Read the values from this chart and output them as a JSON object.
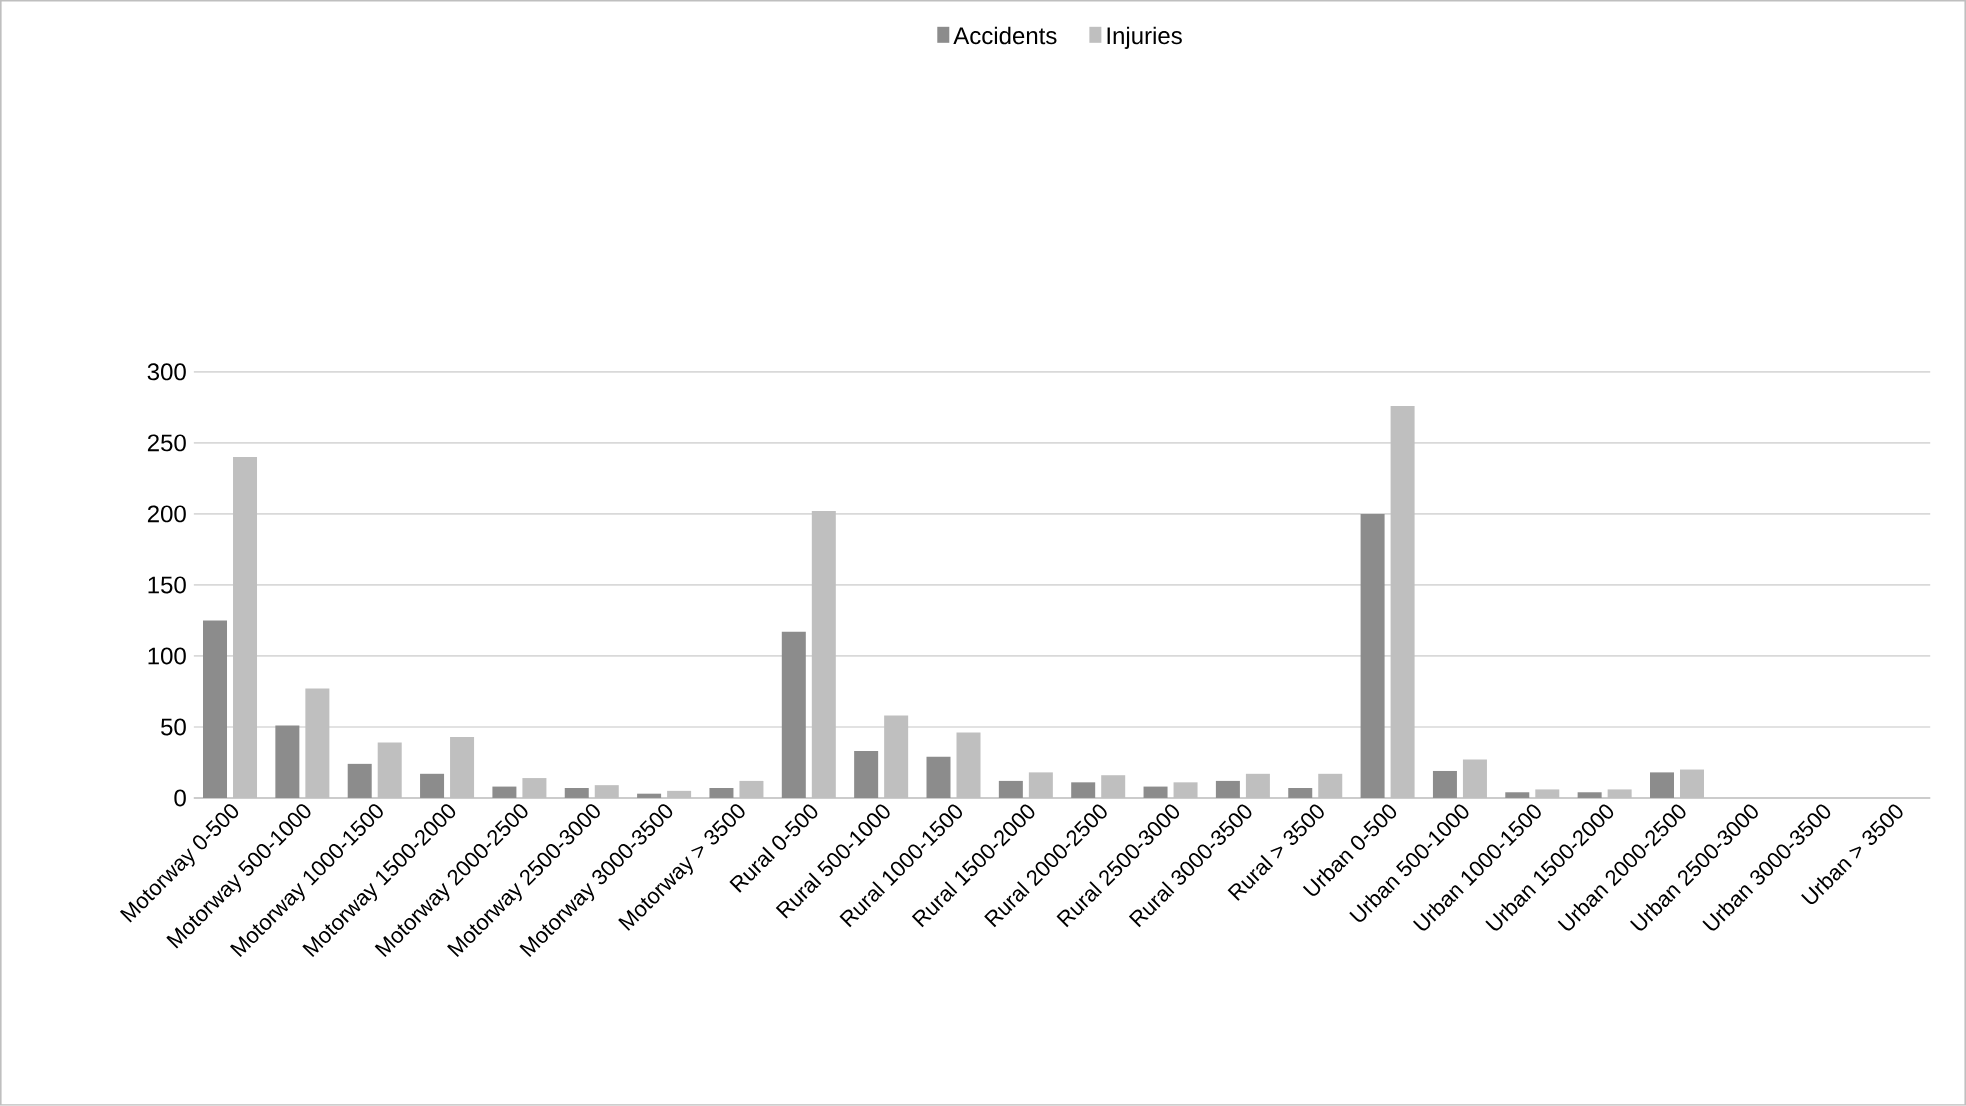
{
  "chart_data": {
    "type": "bar",
    "categories": [
      "Motorway 0-500",
      "Motorway 500-1000",
      "Motorway 1000-1500",
      "Motorway 1500-2000",
      "Motorway 2000-2500",
      "Motorway 2500-3000",
      "Motorway 3000-3500",
      "Motorway > 3500",
      "Rural 0-500",
      "Rural 500-1000",
      "Rural 1000-1500",
      "Rural 1500-2000",
      "Rural 2000-2500",
      "Rural 2500-3000",
      "Rural 3000-3500",
      "Rural > 3500",
      "Urban 0-500",
      "Urban 500-1000",
      "Urban 1000-1500",
      "Urban 1500-2000",
      "Urban 2000-2500",
      "Urban 2500-3000",
      "Urban 3000-3500",
      "Urban > 3500"
    ],
    "series": [
      {
        "name": "Accidents",
        "color": "#8c8c8c",
        "values": [
          125,
          51,
          24,
          17,
          8,
          7,
          3,
          7,
          117,
          33,
          29,
          12,
          11,
          8,
          12,
          7,
          200,
          19,
          4,
          4,
          18,
          0,
          0,
          0
        ]
      },
      {
        "name": "Injuries",
        "color": "#bfbfbf",
        "values": [
          240,
          77,
          39,
          43,
          14,
          9,
          5,
          12,
          202,
          58,
          46,
          18,
          16,
          11,
          17,
          17,
          276,
          27,
          6,
          6,
          20,
          0,
          0,
          0
        ]
      }
    ],
    "ylim": [
      0,
      300
    ],
    "yticks": [
      0,
      50,
      100,
      150,
      200,
      250,
      300
    ],
    "grid": "y",
    "legend": "top"
  }
}
